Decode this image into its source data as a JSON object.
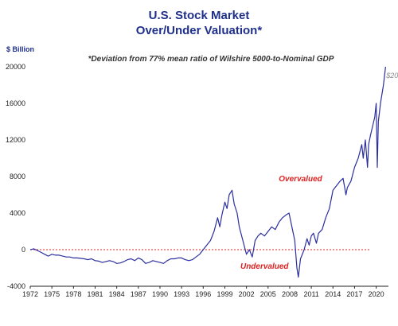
{
  "chart_data": {
    "type": "line",
    "title_line1": "U.S. Stock Market",
    "title_line2": "Over/Under Valuation*",
    "subtitle": "*Deviation from 77% mean ratio of Wilshire 5000-to-Nominal GDP",
    "ylabel": "$ Billion",
    "xlabel": "",
    "ylim": [
      -4000,
      20000
    ],
    "xlim": [
      1972,
      2021.7
    ],
    "yticks": [
      -4000,
      0,
      4000,
      8000,
      12000,
      16000,
      20000
    ],
    "xticks": [
      1972,
      1975,
      1978,
      1981,
      1984,
      1987,
      1990,
      1993,
      1996,
      1999,
      2002,
      2005,
      2008,
      2011,
      2014,
      2017,
      2020
    ],
    "reference_line": {
      "y": 0,
      "color": "#e02020",
      "style": "dotted"
    },
    "line_color": "#2b2f9e",
    "annotations": [
      {
        "text": "Overvalued",
        "x": 2009.5,
        "y": 7500,
        "color": "#e02020"
      },
      {
        "text": "Undervalued",
        "x": 2004.5,
        "y": -2100,
        "color": "#e02020"
      },
      {
        "text": "$20T",
        "x": 2021.4,
        "y": 18800,
        "color": "#8a8a8a"
      }
    ],
    "series": [
      {
        "x": [
          1972.0,
          1972.5,
          1973.0,
          1973.5,
          1974.0,
          1974.5,
          1975.0,
          1975.5,
          1976.0,
          1976.5,
          1977.0,
          1977.5,
          1978.0,
          1978.5,
          1979.0,
          1979.5,
          1980.0,
          1980.5,
          1981.0,
          1981.5,
          1982.0,
          1982.5,
          1983.0,
          1983.5,
          1984.0,
          1984.5,
          1985.0,
          1985.5,
          1986.0,
          1986.5,
          1987.0,
          1987.5,
          1988.0,
          1988.5,
          1989.0,
          1989.5,
          1990.0,
          1990.5,
          1991.0,
          1991.5,
          1992.0,
          1992.5,
          1993.0,
          1993.5,
          1994.0,
          1994.5,
          1995.0,
          1995.5,
          1996.0,
          1996.5,
          1997.0,
          1997.5,
          1998.0,
          1998.3,
          1998.6,
          1999.0,
          1999.3,
          1999.6,
          2000.0,
          2000.3,
          2000.7,
          2001.0,
          2001.5,
          2002.0,
          2002.4,
          2002.8,
          2003.2,
          2003.6,
          2004.0,
          2004.5,
          2005.0,
          2005.5,
          2006.0,
          2006.5,
          2007.0,
          2007.5,
          2007.9,
          2008.3,
          2008.7,
          2009.0,
          2009.2,
          2009.5,
          2010.0,
          2010.4,
          2010.7,
          2011.0,
          2011.3,
          2011.7,
          2012.0,
          2012.5,
          2013.0,
          2013.5,
          2014.0,
          2014.5,
          2015.0,
          2015.4,
          2015.8,
          2016.0,
          2016.5,
          2017.0,
          2017.5,
          2018.0,
          2018.2,
          2018.5,
          2018.8,
          2018.95,
          2019.2,
          2019.5,
          2019.8,
          2020.0,
          2020.15,
          2020.3,
          2020.6,
          2021.0,
          2021.3
        ],
        "values": [
          0,
          100,
          -100,
          -300,
          -500,
          -700,
          -500,
          -600,
          -600,
          -700,
          -800,
          -800,
          -900,
          -900,
          -950,
          -1000,
          -1100,
          -1000,
          -1200,
          -1250,
          -1400,
          -1300,
          -1200,
          -1300,
          -1500,
          -1450,
          -1300,
          -1100,
          -1000,
          -1200,
          -900,
          -1100,
          -1500,
          -1400,
          -1200,
          -1300,
          -1400,
          -1500,
          -1200,
          -1000,
          -1000,
          -900,
          -900,
          -1100,
          -1200,
          -1100,
          -800,
          -500,
          0,
          500,
          1000,
          2000,
          3500,
          2500,
          3800,
          5200,
          4500,
          6000,
          6500,
          5000,
          4000,
          2500,
          1000,
          -500,
          0,
          -800,
          1000,
          1500,
          1800,
          1500,
          2000,
          2500,
          2200,
          3000,
          3500,
          3800,
          4000,
          2500,
          1000,
          -2000,
          -3000,
          -1000,
          0,
          1200,
          500,
          1500,
          1800,
          700,
          1800,
          2200,
          3500,
          4500,
          6500,
          7000,
          7500,
          7800,
          6000,
          6800,
          7500,
          9000,
          10000,
          11500,
          10000,
          12000,
          9000,
          11500,
          12500,
          13500,
          14500,
          16000,
          9000,
          14000,
          16000,
          18000,
          20000
        ]
      }
    ]
  }
}
